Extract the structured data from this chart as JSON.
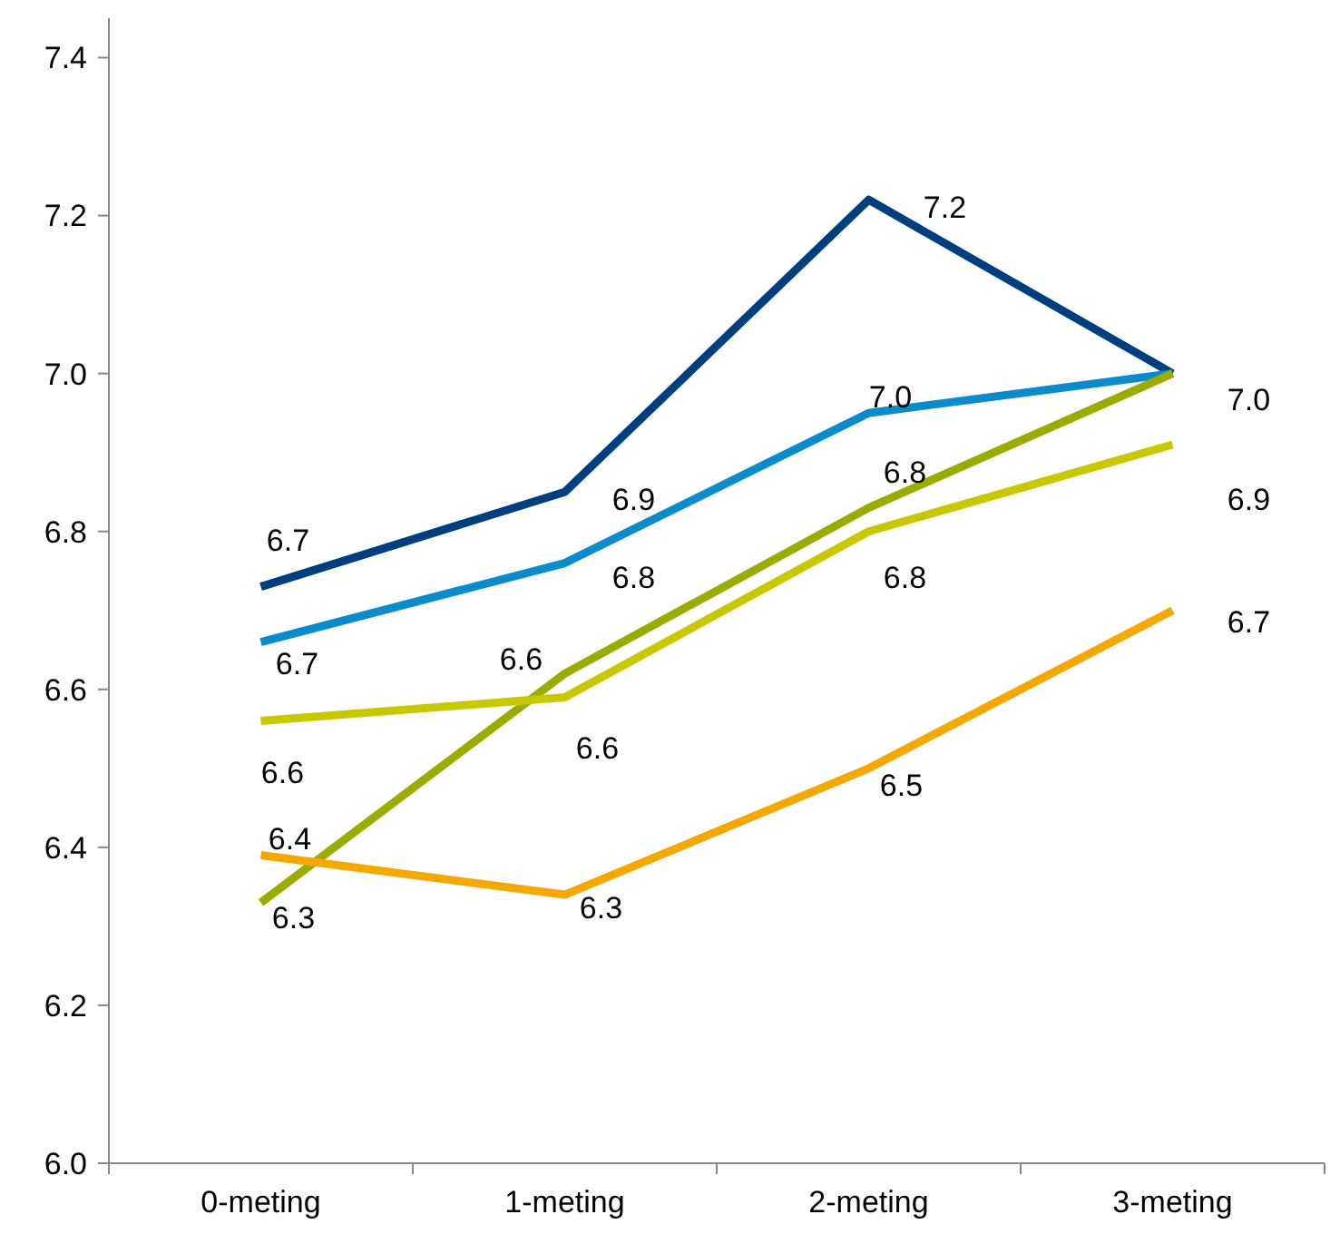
{
  "chart_data": {
    "type": "line",
    "categories": [
      "0-meting",
      "1-meting",
      "2-meting",
      "3-meting"
    ],
    "ylim": [
      6.0,
      7.45
    ],
    "yticks": [
      {
        "value": 6.0,
        "label": "6.0"
      },
      {
        "value": 6.2,
        "label": "6.2"
      },
      {
        "value": 6.4,
        "label": "6.4"
      },
      {
        "value": 6.6,
        "label": "6.6"
      },
      {
        "value": 6.8,
        "label": "6.8"
      },
      {
        "value": 7.0,
        "label": "7.0"
      },
      {
        "value": 7.2,
        "label": "7.2"
      },
      {
        "value": 7.4,
        "label": "7.4"
      }
    ],
    "grid": false,
    "marker": "none",
    "line_style": "solid",
    "series": [
      {
        "color": "#003f7f",
        "values": [
          6.73,
          6.85,
          7.22,
          7.0
        ],
        "value_labels": [
          "6.7",
          "6.9",
          "7.2",
          "7.0"
        ]
      },
      {
        "color": "#0a8ccc",
        "values": [
          6.66,
          6.76,
          6.95,
          7.0
        ],
        "value_labels": [
          "6.7",
          "6.8",
          "7.0",
          null
        ]
      },
      {
        "color": "#9aac00",
        "values": [
          6.33,
          6.62,
          6.83,
          7.0
        ],
        "value_labels": [
          "6.3",
          "6.6",
          "6.8",
          null
        ]
      },
      {
        "color": "#c8c800",
        "values": [
          6.56,
          6.59,
          6.8,
          6.91
        ],
        "value_labels": [
          "6.6",
          "6.6",
          "6.8",
          "6.9"
        ]
      },
      {
        "color": "#f5a800",
        "values": [
          6.39,
          6.34,
          6.5,
          6.7
        ],
        "value_labels": [
          "6.4",
          "6.3",
          "6.5",
          "6.7"
        ]
      }
    ]
  }
}
